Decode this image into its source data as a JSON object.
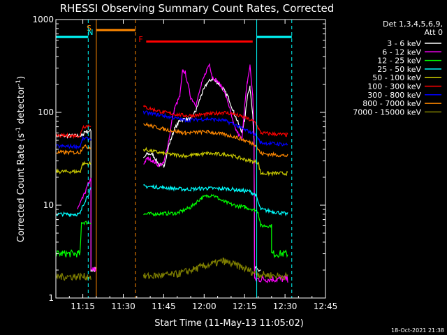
{
  "chart_data": {
    "type": "line",
    "title": "RHESSI Observing Summary Count Rates, Corrected",
    "xlabel": "Start Time (11-May-13 11:05:02)",
    "ylabel": "Corrected Count Rate (s⁻¹ detector⁻¹)",
    "ylabel_parts": {
      "main": "Corrected Count Rate (s",
      "exp1": "-1",
      "mid": " detector",
      "exp2": "-1",
      "end": ")"
    },
    "y_scale": "log",
    "ylim": [
      1,
      1000
    ],
    "xlim_minutes": [
      0,
      100
    ],
    "x_ticks": [
      {
        "label": "11:15",
        "min": 10
      },
      {
        "label": "11:30",
        "min": 25
      },
      {
        "label": "11:45",
        "min": 40
      },
      {
        "label": "12:00",
        "min": 55
      },
      {
        "label": "12:15",
        "min": 70
      },
      {
        "label": "12:30",
        "min": 85
      },
      {
        "label": "12:45",
        "min": 100
      }
    ],
    "y_ticks": [
      {
        "label": "1",
        "value": 1
      },
      {
        "label": "10",
        "value": 10
      },
      {
        "label": "100",
        "value": 100
      },
      {
        "label": "1000",
        "value": 1000
      }
    ],
    "legend_header": [
      "Det 1,3,4,5,6,9,",
      "Att 0"
    ],
    "series": [
      {
        "name": "3 - 6 keV",
        "color": "#ffffff",
        "segments": [
          [
            [
              0,
              56
            ],
            [
              10,
              56
            ],
            [
              10.5,
              62
            ],
            [
              13,
              63
            ],
            [
              13,
              2
            ],
            [
              15,
              2
            ]
          ],
          [
            [
              32.5,
              32
            ],
            [
              34,
              36
            ],
            [
              36,
              35
            ],
            [
              38,
              28
            ],
            [
              40,
              26
            ],
            [
              42,
              45
            ],
            [
              44,
              66
            ],
            [
              46,
              82
            ],
            [
              48,
              85
            ],
            [
              50,
              84
            ],
            [
              52,
              105
            ],
            [
              54,
              155
            ],
            [
              56,
              205
            ],
            [
              58,
              230
            ],
            [
              60,
              210
            ],
            [
              62,
              180
            ],
            [
              64,
              145
            ],
            [
              66,
              100
            ],
            [
              68,
              72
            ],
            [
              69,
              62
            ],
            [
              70,
              82
            ],
            [
              71,
              150
            ],
            [
              72,
              185
            ],
            [
              73,
              100
            ],
            [
              73.5,
              50
            ],
            [
              73.7,
              2
            ],
            [
              76,
              2
            ]
          ]
        ]
      },
      {
        "name": "6 - 12 keV",
        "color": "#ff00ff",
        "segments": [
          [
            [
              8,
              9
            ],
            [
              10,
              12
            ],
            [
              11,
              14
            ],
            [
              12,
              17
            ],
            [
              13,
              19
            ],
            [
              13,
              2
            ],
            [
              15,
              2
            ]
          ],
          [
            [
              32.5,
              28
            ],
            [
              34,
              32
            ],
            [
              36,
              30
            ],
            [
              38,
              27
            ],
            [
              40,
              28
            ],
            [
              42,
              52
            ],
            [
              43,
              80
            ],
            [
              44,
              110
            ],
            [
              46,
              150
            ],
            [
              47,
              280
            ],
            [
              48,
              270
            ],
            [
              50,
              145
            ],
            [
              52,
              120
            ],
            [
              54,
              200
            ],
            [
              56,
              290
            ],
            [
              57,
              335
            ],
            [
              58,
              240
            ],
            [
              60,
              215
            ],
            [
              62,
              180
            ],
            [
              64,
              125
            ],
            [
              66,
              72
            ],
            [
              68,
              56
            ],
            [
              69,
              52
            ],
            [
              70,
              115
            ],
            [
              71,
              210
            ],
            [
              72,
              320
            ],
            [
              73,
              155
            ],
            [
              73.5,
              60
            ],
            [
              73.7,
              1.6
            ],
            [
              86,
              1.6
            ]
          ]
        ]
      },
      {
        "name": "12 - 25 keV",
        "color": "#00ff00",
        "segments": [
          [
            [
              0,
              3
            ],
            [
              9,
              3
            ],
            [
              9.5,
              6.5
            ],
            [
              13,
              6.5
            ]
          ],
          [
            [
              32.5,
              8
            ],
            [
              45,
              8.2
            ],
            [
              50,
              9.5
            ],
            [
              54,
              12
            ],
            [
              58,
              13
            ],
            [
              62,
              11
            ],
            [
              66,
              10
            ],
            [
              70,
              9.5
            ],
            [
              73.5,
              9
            ],
            [
              75,
              8.5
            ],
            [
              76,
              6
            ],
            [
              80,
              6
            ],
            [
              80,
              3
            ],
            [
              86,
              3
            ]
          ]
        ]
      },
      {
        "name": "25 - 50 keV",
        "color": "#00ffff",
        "segments": [
          [
            [
              0,
              8
            ],
            [
              9,
              8
            ],
            [
              10,
              10
            ],
            [
              13,
              15
            ]
          ],
          [
            [
              32.5,
              16
            ],
            [
              40,
              15.5
            ],
            [
              48,
              14.8
            ],
            [
              56,
              15.2
            ],
            [
              64,
              15
            ],
            [
              72,
              14
            ],
            [
              74,
              13
            ],
            [
              76,
              9
            ],
            [
              86,
              8
            ]
          ]
        ]
      },
      {
        "name": "50 - 100 keV",
        "color": "#cccc00",
        "segments": [
          [
            [
              0,
              23
            ],
            [
              9,
              23
            ],
            [
              10,
              28
            ],
            [
              13,
              28
            ]
          ],
          [
            [
              32.5,
              40
            ],
            [
              40,
              36
            ],
            [
              48,
              34
            ],
            [
              56,
              36
            ],
            [
              64,
              35
            ],
            [
              72,
              30
            ],
            [
              75,
              29
            ],
            [
              76,
              22
            ],
            [
              86,
              22
            ]
          ]
        ]
      },
      {
        "name": "100 - 300 keV",
        "color": "#ff0000",
        "segments": [
          [
            [
              0,
              56
            ],
            [
              9,
              56
            ],
            [
              10,
              70
            ],
            [
              13,
              73
            ]
          ],
          [
            [
              32.5,
              115
            ],
            [
              40,
              100
            ],
            [
              48,
              92
            ],
            [
              56,
              95
            ],
            [
              62,
              100
            ],
            [
              66,
              96
            ],
            [
              70,
              88
            ],
            [
              74,
              78
            ],
            [
              76,
              60
            ],
            [
              86,
              57
            ]
          ]
        ]
      },
      {
        "name": "300 - 800 keV",
        "color": "#0000ff",
        "segments": [
          [
            [
              0,
              43
            ],
            [
              9,
              43
            ],
            [
              10,
              52
            ],
            [
              13,
              52
            ]
          ],
          [
            [
              32.5,
              100
            ],
            [
              40,
              92
            ],
            [
              48,
              82
            ],
            [
              56,
              85
            ],
            [
              62,
              82
            ],
            [
              66,
              75
            ],
            [
              70,
              65
            ],
            [
              74,
              58
            ],
            [
              76,
              47
            ],
            [
              86,
              45
            ]
          ]
        ]
      },
      {
        "name": "800 - 7000 keV",
        "color": "#ff8800",
        "segments": [
          [
            [
              0,
              37
            ],
            [
              9,
              37
            ],
            [
              10,
              43
            ],
            [
              13,
              42
            ]
          ],
          [
            [
              32.5,
              75
            ],
            [
              40,
              66
            ],
            [
              48,
              60
            ],
            [
              56,
              62
            ],
            [
              62,
              58
            ],
            [
              66,
              55
            ],
            [
              70,
              50
            ],
            [
              74,
              45
            ],
            [
              76,
              36
            ],
            [
              86,
              34
            ]
          ]
        ]
      },
      {
        "name": "7000 - 15000 keV",
        "color": "#808000",
        "segments": [
          [
            [
              0,
              1.7
            ],
            [
              13,
              1.7
            ]
          ],
          [
            [
              32.5,
              1.7
            ],
            [
              45,
              1.8
            ],
            [
              55,
              2.2
            ],
            [
              62,
              2.5
            ],
            [
              68,
              2.2
            ],
            [
              75,
              1.8
            ],
            [
              86,
              1.7
            ]
          ]
        ]
      }
    ],
    "markers": [
      {
        "type": "S",
        "label": "S",
        "color": "#ff8800",
        "x_min": 12.3
      },
      {
        "type": "N",
        "label": "N",
        "color": "#00ffff",
        "x_min": 12.8
      },
      {
        "type": "F",
        "label": "F",
        "color": "#ff0000",
        "x_min": 31.5
      }
    ],
    "bars": [
      {
        "color": "#00ffff",
        "x0": 0,
        "x1": 12,
        "y": 650
      },
      {
        "color": "#ff8800",
        "x0": 15,
        "x1": 29.5,
        "y": 770
      },
      {
        "color": "#ff0000",
        "x0": 33.5,
        "x1": 73,
        "y": 580
      },
      {
        "color": "#00ffff",
        "x0": 74.5,
        "x1": 87.5,
        "y": 650
      }
    ],
    "vlines": [
      {
        "color": "#00ffff",
        "x": 0,
        "style": "solid"
      },
      {
        "color": "#00ffff",
        "x": 12,
        "style": "dashed"
      },
      {
        "color": "#ff8800",
        "x": 15,
        "style": "solid"
      },
      {
        "color": "#ff8800",
        "x": 29.5,
        "style": "dashed"
      },
      {
        "color": "#00ffff",
        "x": 74.5,
        "style": "solid"
      },
      {
        "color": "#00ffff",
        "x": 87.5,
        "style": "dashed"
      }
    ],
    "stamp": "18-Oct-2021 21:38"
  }
}
